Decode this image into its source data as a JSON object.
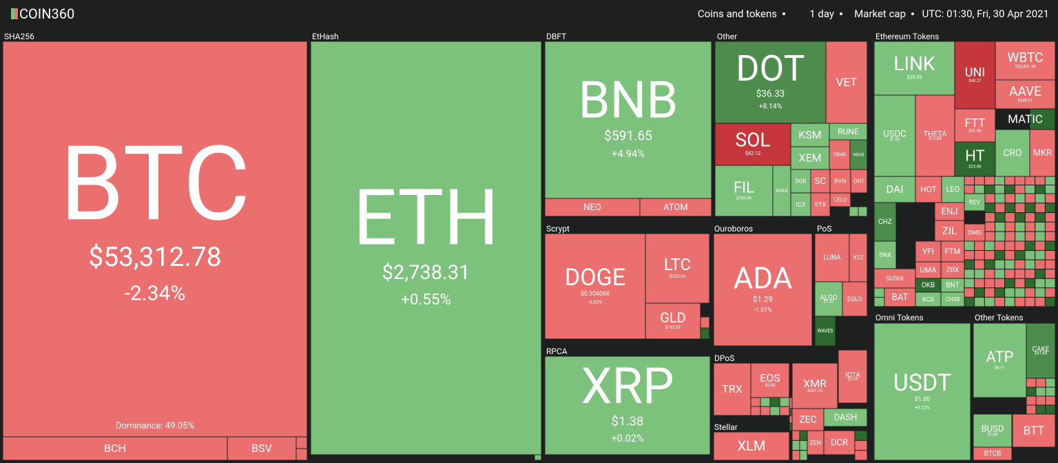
{
  "header": {
    "logo": "COIN360",
    "filters": [
      "Coins and tokens",
      "1 day",
      "Market cap",
      "UTC: 01:30, Fri, 30 Apr 2021"
    ]
  },
  "groups": [
    {
      "name": "SHA256",
      "tiles": [
        {
          "symbol": "BTC",
          "price": "$53,312.78",
          "change": "-2.34%",
          "dominance": "Dominance: 49.05%",
          "color": "#ec6f6f"
        },
        {
          "symbol": "BCH",
          "color": "#ec6f6f"
        },
        {
          "symbol": "BSV",
          "color": "#ec6f6f"
        }
      ]
    },
    {
      "name": "EtHash",
      "tiles": [
        {
          "symbol": "ETH",
          "price": "$2,738.31",
          "change": "+0.55%",
          "color": "#7cc17c"
        }
      ]
    },
    {
      "name": "DBFT",
      "tiles": [
        {
          "symbol": "BNB",
          "price": "$591.65",
          "change": "+4.94%",
          "color": "#7cc17c"
        },
        {
          "symbol": "NEO",
          "color": "#ec6f6f"
        },
        {
          "symbol": "ATOM",
          "color": "#ec6f6f"
        }
      ]
    },
    {
      "name": "Other",
      "tiles": [
        {
          "symbol": "DOT",
          "price": "$36.33",
          "change": "+8.14%",
          "color": "#4d8c4d"
        },
        {
          "symbol": "VET",
          "color": "#ec6f6f"
        },
        {
          "symbol": "SOL",
          "price": "$42.12",
          "color": "#c7363a"
        },
        {
          "symbol": "KSM",
          "color": "#7cc17c"
        },
        {
          "symbol": "RUNE",
          "color": "#7cc17c"
        },
        {
          "symbol": "XEM",
          "color": "#7cc17c"
        },
        {
          "symbol": "HBAR",
          "color": "#ec6f6f"
        },
        {
          "symbol": "NEAR",
          "color": "#4d8c4d"
        },
        {
          "symbol": "FIL",
          "price": "$150.96",
          "color": "#7cc17c"
        },
        {
          "symbol": "AVAX",
          "color": "#7cc17c"
        },
        {
          "symbol": "DGB",
          "color": "#7cc17c"
        },
        {
          "symbol": "SC",
          "color": "#ec6f6f"
        },
        {
          "symbol": "RVN",
          "color": "#ec6f6f"
        },
        {
          "symbol": "ONT",
          "color": "#ec6f6f"
        },
        {
          "symbol": "ICX",
          "color": "#7cc17c"
        },
        {
          "symbol": "STX",
          "color": "#ec6f6f"
        },
        {
          "symbol": "CELO",
          "color": "#ec6f6f"
        }
      ]
    },
    {
      "name": "Ethereum Tokens",
      "tiles": [
        {
          "symbol": "LINK",
          "price": "$35.99",
          "color": "#7cc17c"
        },
        {
          "symbol": "UNI",
          "price": "$40.27",
          "color": "#c7363a"
        },
        {
          "symbol": "WBTC",
          "price": "$53,351.44",
          "color": "#ec6f6f"
        },
        {
          "symbol": "AAVE",
          "price": "$438.61",
          "color": "#ec6f6f"
        },
        {
          "symbol": "MATIC",
          "color": "#2e6a2e"
        },
        {
          "symbol": "USDC",
          "price": "$1.00",
          "color": "#7cc17c"
        },
        {
          "symbol": "THETA",
          "price": "$10.83",
          "color": "#ec6f6f"
        },
        {
          "symbol": "FTT",
          "price": "$51.96",
          "color": "#ec6f6f"
        },
        {
          "symbol": "HT",
          "price": "$23.86",
          "color": "#2e6a2e"
        },
        {
          "symbol": "CRO",
          "color": "#7cc17c"
        },
        {
          "symbol": "MKR",
          "color": "#ec6f6f"
        },
        {
          "symbol": "DAI",
          "color": "#7cc17c"
        },
        {
          "symbol": "HOT",
          "color": "#ec6f6f"
        },
        {
          "symbol": "LEO",
          "color": "#7cc17c"
        },
        {
          "symbol": "CHZ",
          "color": "#4d8c4d"
        },
        {
          "symbol": "ENJ",
          "color": "#ec6f6f"
        },
        {
          "symbol": "ZIL",
          "color": "#ec6f6f"
        },
        {
          "symbol": "REV",
          "color": "#7cc17c"
        },
        {
          "symbol": "OMG",
          "color": "#ec6f6f"
        },
        {
          "symbol": "SNX",
          "color": "#7cc17c"
        },
        {
          "symbol": "YFI",
          "color": "#ec6f6f"
        },
        {
          "symbol": "FTM",
          "color": "#ec6f6f"
        },
        {
          "symbol": "UMA",
          "color": "#ec6f6f"
        },
        {
          "symbol": "ZRX",
          "color": "#ec6f6f"
        },
        {
          "symbol": "SUSHI",
          "color": "#ec6f6f"
        },
        {
          "symbol": "OKB",
          "color": "#2e6a2e"
        },
        {
          "symbol": "BNT",
          "color": "#7cc17c"
        },
        {
          "symbol": "BAT",
          "color": "#ec6f6f"
        },
        {
          "symbol": "KCS",
          "color": "#7cc17c"
        },
        {
          "symbol": "CHSB",
          "color": "#7cc17c"
        }
      ]
    },
    {
      "name": "Scrypt",
      "tiles": [
        {
          "symbol": "DOGE",
          "price": "$0.304068",
          "change": "-3.62%",
          "color": "#ec6f6f"
        },
        {
          "symbol": "LTC",
          "price": "$253.24",
          "color": "#ec6f6f"
        },
        {
          "symbol": "GLD",
          "price": "$163.93",
          "color": "#ec6f6f"
        }
      ]
    },
    {
      "name": "Ouroboros",
      "tiles": [
        {
          "symbol": "ADA",
          "price": "$1.29",
          "change": "-1.51%",
          "color": "#ec6f6f"
        }
      ]
    },
    {
      "name": "PoS",
      "tiles": [
        {
          "symbol": "LUNA",
          "color": "#ec6f6f"
        },
        {
          "symbol": "XTZ",
          "color": "#ec6f6f"
        },
        {
          "symbol": "ALGO",
          "price": "$1.33",
          "color": "#7cc17c"
        },
        {
          "symbol": "EGLD",
          "color": "#ec6f6f"
        },
        {
          "symbol": "WAVES",
          "color": "#2e6a2e"
        }
      ]
    },
    {
      "name": "RPCA",
      "tiles": [
        {
          "symbol": "XRP",
          "price": "$1.38",
          "change": "+0.02%",
          "color": "#7cc17c"
        }
      ]
    },
    {
      "name": "DPoS",
      "tiles": [
        {
          "symbol": "TRX",
          "color": "#ec6f6f"
        },
        {
          "symbol": "EOS",
          "price": "$5.85",
          "color": "#ec6f6f"
        },
        {
          "symbol": "XMR",
          "price": "$407.75",
          "color": "#ec6f6f"
        },
        {
          "symbol": "IOTA",
          "price": "$2.04",
          "color": "#ec6f6f"
        },
        {
          "symbol": "ZEC",
          "color": "#ec6f6f"
        },
        {
          "symbol": "DASH",
          "color": "#7cc17c"
        },
        {
          "symbol": "DCR",
          "color": "#ec6f6f"
        },
        {
          "symbol": "ZEN",
          "color": "#ec6f6f"
        }
      ]
    },
    {
      "name": "Stellar",
      "tiles": [
        {
          "symbol": "XLM",
          "color": "#ec6f6f"
        }
      ]
    },
    {
      "name": "Omni Tokens",
      "tiles": [
        {
          "symbol": "USDT",
          "price": "$1.00",
          "change": "+0.22%",
          "color": "#7cc17c"
        }
      ]
    },
    {
      "name": "Other Tokens",
      "tiles": [
        {
          "symbol": "ATP",
          "price": "$6.11",
          "color": "#7cc17c"
        },
        {
          "symbol": "CAKE",
          "price": "$41.69",
          "color": "#4d8c4d"
        },
        {
          "symbol": "BUSD",
          "price": "$1.00",
          "color": "#7cc17c"
        },
        {
          "symbol": "BTT",
          "color": "#ec6f6f"
        },
        {
          "symbol": "BTCB",
          "color": "#ec6f6f"
        }
      ]
    }
  ]
}
